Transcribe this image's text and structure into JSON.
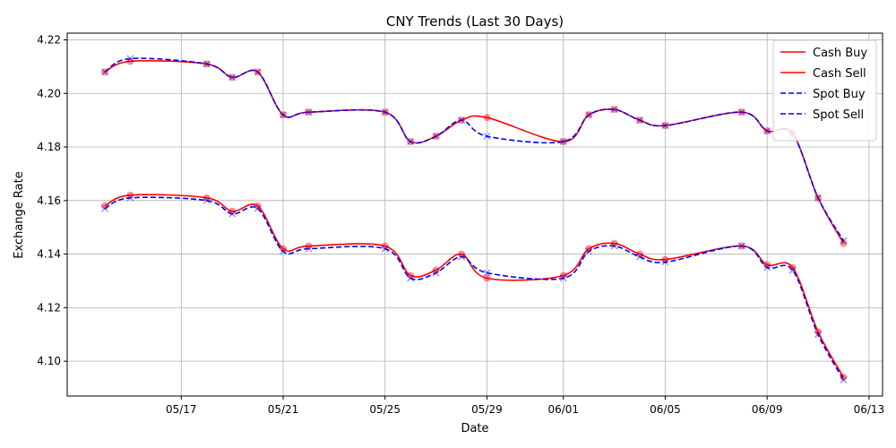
{
  "chart_data": {
    "type": "line",
    "title": "CNY Trends (Last 30 Days)",
    "xlabel": "Date",
    "ylabel": "Exchange Rate",
    "x_ticks": [
      "05/17",
      "05/21",
      "05/25",
      "05/29",
      "06/01",
      "06/05",
      "06/09",
      "06/13"
    ],
    "y_ticks": [
      "4.10",
      "4.12",
      "4.14",
      "4.16",
      "4.18",
      "4.20",
      "4.22"
    ],
    "ylim": [
      4.087,
      4.2225
    ],
    "grid": true,
    "legend_position": "top-right",
    "dates": [
      "05/14",
      "05/15",
      "05/16",
      "05/17",
      "05/18",
      "05/19",
      "05/20",
      "05/21",
      "05/22",
      "05/23",
      "05/24",
      "05/25",
      "05/26",
      "05/27",
      "05/28",
      "05/29",
      "05/30",
      "05/31",
      "06/01",
      "06/02",
      "06/03",
      "06/04",
      "06/05",
      "06/06",
      "06/07",
      "06/08",
      "06/09",
      "06/10",
      "06/11",
      "06/12",
      "06/13"
    ],
    "series": [
      {
        "name": "Cash Buy",
        "color": "#ff0000",
        "dash": "solid",
        "marker": "o",
        "values": [
          4.208,
          4.212,
          null,
          null,
          4.211,
          4.206,
          4.208,
          4.192,
          4.193,
          null,
          null,
          4.193,
          4.182,
          4.184,
          4.19,
          4.191,
          null,
          null,
          4.182,
          4.192,
          4.194,
          4.19,
          4.188,
          null,
          null,
          4.193,
          4.186,
          4.185,
          4.161,
          4.144,
          null
        ]
      },
      {
        "name": "Cash Sell",
        "color": "#ff0000",
        "dash": "solid",
        "marker": "o",
        "values": [
          4.158,
          4.162,
          null,
          null,
          4.161,
          4.156,
          4.158,
          4.142,
          4.143,
          null,
          null,
          4.143,
          4.132,
          4.134,
          4.14,
          4.131,
          null,
          null,
          4.132,
          4.142,
          4.144,
          4.14,
          4.138,
          null,
          null,
          4.143,
          4.136,
          4.135,
          4.111,
          4.094,
          null
        ]
      },
      {
        "name": "Spot Buy",
        "color": "#0000ff",
        "dash": "dashed",
        "marker": "x",
        "values": [
          4.208,
          4.213,
          null,
          null,
          4.211,
          4.206,
          4.208,
          4.192,
          4.193,
          null,
          null,
          4.193,
          4.182,
          4.184,
          4.19,
          4.184,
          null,
          null,
          4.182,
          4.192,
          4.194,
          4.19,
          4.188,
          null,
          null,
          4.193,
          4.186,
          4.185,
          4.161,
          4.145,
          null
        ]
      },
      {
        "name": "Spot Sell",
        "color": "#0000ff",
        "dash": "dashed",
        "marker": "x",
        "values": [
          4.157,
          4.161,
          null,
          null,
          4.16,
          4.155,
          4.157,
          4.141,
          4.142,
          null,
          null,
          4.142,
          4.131,
          4.133,
          4.139,
          4.133,
          null,
          null,
          4.131,
          4.141,
          4.143,
          4.139,
          4.137,
          null,
          null,
          4.143,
          4.135,
          4.134,
          4.11,
          4.093,
          null
        ]
      }
    ]
  }
}
